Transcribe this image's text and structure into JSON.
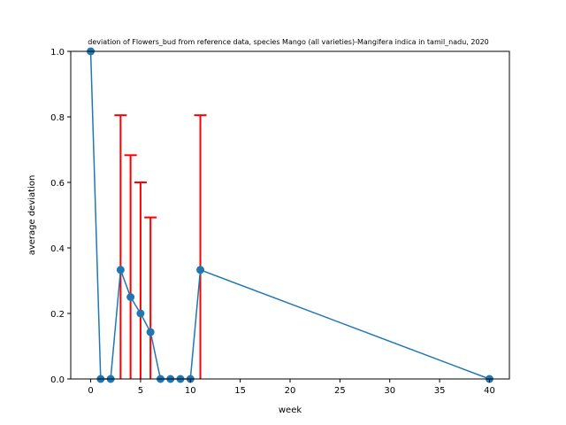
{
  "chart_data": {
    "type": "line",
    "title": "deviation of Flowers_bud from reference data, species Mango (all varieties)-Mangifera indica in tamil_nadu, 2020",
    "xlabel": "week",
    "ylabel": "average deviation",
    "xlim": [
      -2,
      42
    ],
    "ylim": [
      0,
      1.0
    ],
    "xticks": [
      0,
      5,
      10,
      15,
      20,
      25,
      30,
      35,
      40
    ],
    "yticks": [
      0.0,
      0.2,
      0.4,
      0.6,
      0.8,
      1.0
    ],
    "xtick_labels": [
      "0",
      "5",
      "10",
      "15",
      "20",
      "25",
      "30",
      "35",
      "40"
    ],
    "ytick_labels": [
      "0.0",
      "0.2",
      "0.4",
      "0.6",
      "0.8",
      "1.0"
    ],
    "grid": false,
    "series": [
      {
        "color": "#1f77b4",
        "marker": "circle",
        "x": [
          0,
          1,
          2,
          3,
          4,
          5,
          6,
          7,
          8,
          9,
          10,
          11,
          40
        ],
        "y": [
          1.0,
          0.0,
          0.0,
          0.333,
          0.25,
          0.2,
          0.143,
          0.0,
          0.0,
          0.0,
          0.0,
          0.333,
          0.0
        ]
      }
    ],
    "error_bars": {
      "color": "#ff0000",
      "x": [
        3,
        4,
        5,
        6,
        11
      ],
      "upper": [
        0.805,
        0.683,
        0.6,
        0.493,
        0.805
      ],
      "lower": [
        0.0,
        0.0,
        0.0,
        0.0,
        0.0
      ]
    }
  }
}
